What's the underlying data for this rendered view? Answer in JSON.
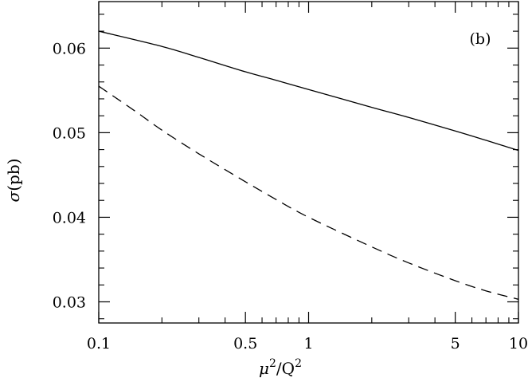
{
  "chart_data": {
    "type": "line",
    "title": "",
    "panel_label": "(b)",
    "xlabel": {
      "base": "μ",
      "sup1": "2",
      "mid": "/Q",
      "sup2": "2"
    },
    "ylabel": {
      "sym": "σ",
      "rest": "(pb)"
    },
    "x_scale": "log",
    "xlim": [
      0.1,
      10
    ],
    "ylim": [
      0.0275,
      0.0655
    ],
    "x_ticks_major": [
      {
        "value": 0.1,
        "label": "0.1"
      },
      {
        "value": 0.5,
        "label": "0.5"
      },
      {
        "value": 1,
        "label": "1"
      },
      {
        "value": 5,
        "label": "5"
      },
      {
        "value": 10,
        "label": "10"
      }
    ],
    "y_ticks_major": [
      {
        "value": 0.03,
        "label": "0.03"
      },
      {
        "value": 0.04,
        "label": "0.04"
      },
      {
        "value": 0.05,
        "label": "0.05"
      },
      {
        "value": 0.06,
        "label": "0.06"
      }
    ],
    "grid": false,
    "legend": "none",
    "series": [
      {
        "style": "solid",
        "color": "#000000",
        "x": [
          0.1,
          0.2,
          0.3,
          0.5,
          0.7,
          1,
          2,
          3,
          5,
          7,
          10
        ],
        "y": [
          0.062,
          0.0602,
          0.0589,
          0.0572,
          0.0562,
          0.0551,
          0.053,
          0.0518,
          0.0502,
          0.0491,
          0.0479
        ]
      },
      {
        "style": "dashed",
        "color": "#000000",
        "x": [
          0.1,
          0.15,
          0.2,
          0.3,
          0.5,
          0.7,
          1,
          2,
          3,
          5,
          7,
          10
        ],
        "y": [
          0.0555,
          0.0525,
          0.0503,
          0.0475,
          0.0442,
          0.0421,
          0.04,
          0.0365,
          0.0346,
          0.0325,
          0.0313,
          0.0303
        ]
      }
    ]
  }
}
